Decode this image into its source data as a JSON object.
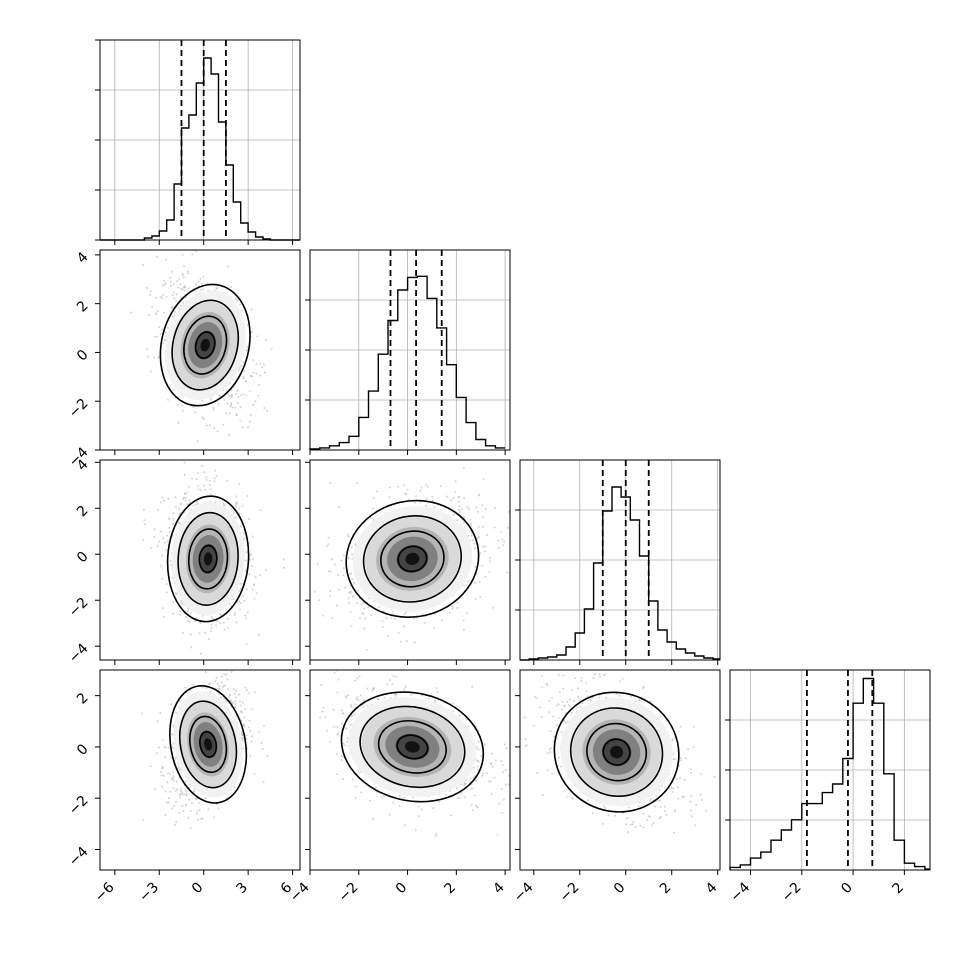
{
  "chart_data": {
    "type": "corner",
    "n_params": 4,
    "grid": true,
    "colors": {
      "line": "#000000",
      "grid": "#b0b0b0",
      "scatter": "#c0c0c0",
      "density_dark": "#111111"
    },
    "params": [
      {
        "range": [
          -7,
          6.5
        ],
        "ticks": [
          -6,
          -3,
          0,
          3,
          6
        ],
        "tick_labels": [
          "−6",
          "−3",
          "0",
          "3",
          "6"
        ]
      },
      {
        "range": [
          -4,
          4.2
        ],
        "ticks": [
          -4,
          -2,
          0,
          2,
          4
        ],
        "tick_labels": [
          "−4",
          "−2",
          "0",
          "2",
          "4"
        ]
      },
      {
        "range": [
          -4.6,
          4.1
        ],
        "ticks": [
          -4,
          -2,
          0,
          2,
          4
        ],
        "tick_labels": [
          "−4",
          "−2",
          "0",
          "2",
          "4"
        ]
      },
      {
        "range": [
          -4.8,
          3.0
        ],
        "ticks": [
          -4,
          -2,
          0,
          2
        ],
        "tick_labels": [
          "−4",
          "−2",
          "0",
          "2"
        ]
      }
    ],
    "diagonal_histograms": [
      {
        "param": 0,
        "bin_edges": [
          -7,
          -6.5,
          -6,
          -5.5,
          -5,
          -4.5,
          -4,
          -3.5,
          -3,
          -2.5,
          -2,
          -1.5,
          -1,
          -0.5,
          0,
          0.5,
          1,
          1.5,
          2,
          2.5,
          3,
          3.5,
          4,
          4.5,
          5,
          5.5,
          6,
          6.5
        ],
        "counts": [
          0,
          0,
          0,
          0,
          0,
          0,
          2,
          4,
          9,
          20,
          56,
          112,
          125,
          157,
          182,
          166,
          118,
          75,
          38,
          17,
          8,
          3,
          1,
          0,
          0,
          0,
          0
        ],
        "quantiles": [
          -1.5,
          0.0,
          1.5
        ],
        "ymax": 200
      },
      {
        "param": 1,
        "bin_edges": [
          -4.0,
          -3.6,
          -3.2,
          -2.8,
          -2.4,
          -2.0,
          -1.6,
          -1.2,
          -0.8,
          -0.4,
          0.0,
          0.4,
          0.8,
          1.2,
          1.6,
          2.0,
          2.4,
          2.8,
          3.2,
          3.6,
          4.0
        ],
        "counts": [
          1,
          2,
          4,
          7,
          13,
          31,
          56,
          91,
          123,
          152,
          164,
          165,
          144,
          116,
          81,
          50,
          26,
          10,
          4,
          2
        ],
        "quantiles": [
          -0.7,
          0.35,
          1.4
        ],
        "ymax": 190
      },
      {
        "param": 2,
        "bin_edges": [
          -4.6,
          -4.2,
          -3.8,
          -3.4,
          -3.0,
          -2.6,
          -2.2,
          -1.8,
          -1.4,
          -1.0,
          -0.6,
          -0.2,
          0.2,
          0.6,
          1.0,
          1.4,
          1.8,
          2.2,
          2.6,
          3.0,
          3.4,
          3.8,
          4.1
        ],
        "counts": [
          0,
          1,
          2,
          3,
          5,
          13,
          27,
          51,
          97,
          149,
          173,
          163,
          140,
          104,
          59,
          30,
          18,
          11,
          7,
          4,
          2,
          1
        ],
        "quantiles": [
          -1.0,
          0.0,
          1.0
        ],
        "ymax": 200
      },
      {
        "param": 3,
        "bin_edges": [
          -4.8,
          -4.4,
          -4.0,
          -3.6,
          -3.2,
          -2.8,
          -2.4,
          -2.0,
          -1.6,
          -1.2,
          -0.8,
          -0.4,
          0.0,
          0.4,
          0.8,
          1.2,
          1.6,
          2.0,
          2.4,
          2.8,
          3.0
        ],
        "counts": [
          3,
          6,
          14,
          21,
          35,
          47,
          59,
          78,
          78,
          91,
          101,
          131,
          196,
          225,
          196,
          113,
          35,
          8,
          4,
          1
        ],
        "quantiles": [
          -1.8,
          -0.2,
          0.75
        ],
        "ymax": 235
      }
    ],
    "pairs": [
      {
        "row": 1,
        "col": 0,
        "center": [
          0.1,
          0.3
        ],
        "sigma": [
          1.4,
          1.2
        ],
        "rho": -0.35
      },
      {
        "row": 2,
        "col": 0,
        "center": [
          0.3,
          -0.2
        ],
        "sigma": [
          1.3,
          1.3
        ],
        "rho": -0.1
      },
      {
        "row": 2,
        "col": 1,
        "center": [
          0.2,
          -0.2
        ],
        "sigma": [
          1.3,
          1.2
        ],
        "rho": 0.25
      },
      {
        "row": 3,
        "col": 0,
        "center": [
          0.3,
          0.1
        ],
        "sigma": [
          1.2,
          1.1
        ],
        "rho": 0.3
      },
      {
        "row": 3,
        "col": 1,
        "center": [
          0.2,
          0.0
        ],
        "sigma": [
          1.4,
          1.0
        ],
        "rho": -0.3
      },
      {
        "row": 3,
        "col": 2,
        "center": [
          -0.4,
          -0.2
        ],
        "sigma": [
          1.3,
          1.1
        ],
        "rho": -0.45
      }
    ]
  }
}
